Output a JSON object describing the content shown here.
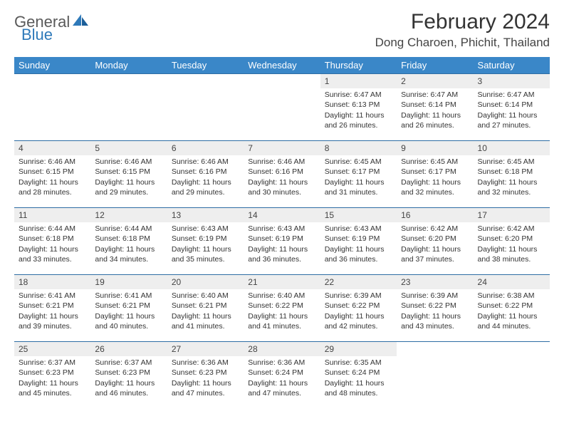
{
  "brand": {
    "part1": "General",
    "part2": "Blue"
  },
  "title": "February 2024",
  "location": "Dong Charoen, Phichit, Thailand",
  "colors": {
    "header_bg": "#3a87c8",
    "header_text": "#ffffff",
    "row_border": "#2e6da4",
    "daynum_bg": "#eeeeee",
    "brand_blue": "#2e79b9"
  },
  "weekdays": [
    "Sunday",
    "Monday",
    "Tuesday",
    "Wednesday",
    "Thursday",
    "Friday",
    "Saturday"
  ],
  "weeks": [
    [
      null,
      null,
      null,
      null,
      {
        "d": "1",
        "sr": "6:47 AM",
        "ss": "6:13 PM",
        "dl": "11 hours and 26 minutes."
      },
      {
        "d": "2",
        "sr": "6:47 AM",
        "ss": "6:14 PM",
        "dl": "11 hours and 26 minutes."
      },
      {
        "d": "3",
        "sr": "6:47 AM",
        "ss": "6:14 PM",
        "dl": "11 hours and 27 minutes."
      }
    ],
    [
      {
        "d": "4",
        "sr": "6:46 AM",
        "ss": "6:15 PM",
        "dl": "11 hours and 28 minutes."
      },
      {
        "d": "5",
        "sr": "6:46 AM",
        "ss": "6:15 PM",
        "dl": "11 hours and 29 minutes."
      },
      {
        "d": "6",
        "sr": "6:46 AM",
        "ss": "6:16 PM",
        "dl": "11 hours and 29 minutes."
      },
      {
        "d": "7",
        "sr": "6:46 AM",
        "ss": "6:16 PM",
        "dl": "11 hours and 30 minutes."
      },
      {
        "d": "8",
        "sr": "6:45 AM",
        "ss": "6:17 PM",
        "dl": "11 hours and 31 minutes."
      },
      {
        "d": "9",
        "sr": "6:45 AM",
        "ss": "6:17 PM",
        "dl": "11 hours and 32 minutes."
      },
      {
        "d": "10",
        "sr": "6:45 AM",
        "ss": "6:18 PM",
        "dl": "11 hours and 32 minutes."
      }
    ],
    [
      {
        "d": "11",
        "sr": "6:44 AM",
        "ss": "6:18 PM",
        "dl": "11 hours and 33 minutes."
      },
      {
        "d": "12",
        "sr": "6:44 AM",
        "ss": "6:18 PM",
        "dl": "11 hours and 34 minutes."
      },
      {
        "d": "13",
        "sr": "6:43 AM",
        "ss": "6:19 PM",
        "dl": "11 hours and 35 minutes."
      },
      {
        "d": "14",
        "sr": "6:43 AM",
        "ss": "6:19 PM",
        "dl": "11 hours and 36 minutes."
      },
      {
        "d": "15",
        "sr": "6:43 AM",
        "ss": "6:19 PM",
        "dl": "11 hours and 36 minutes."
      },
      {
        "d": "16",
        "sr": "6:42 AM",
        "ss": "6:20 PM",
        "dl": "11 hours and 37 minutes."
      },
      {
        "d": "17",
        "sr": "6:42 AM",
        "ss": "6:20 PM",
        "dl": "11 hours and 38 minutes."
      }
    ],
    [
      {
        "d": "18",
        "sr": "6:41 AM",
        "ss": "6:21 PM",
        "dl": "11 hours and 39 minutes."
      },
      {
        "d": "19",
        "sr": "6:41 AM",
        "ss": "6:21 PM",
        "dl": "11 hours and 40 minutes."
      },
      {
        "d": "20",
        "sr": "6:40 AM",
        "ss": "6:21 PM",
        "dl": "11 hours and 41 minutes."
      },
      {
        "d": "21",
        "sr": "6:40 AM",
        "ss": "6:22 PM",
        "dl": "11 hours and 41 minutes."
      },
      {
        "d": "22",
        "sr": "6:39 AM",
        "ss": "6:22 PM",
        "dl": "11 hours and 42 minutes."
      },
      {
        "d": "23",
        "sr": "6:39 AM",
        "ss": "6:22 PM",
        "dl": "11 hours and 43 minutes."
      },
      {
        "d": "24",
        "sr": "6:38 AM",
        "ss": "6:22 PM",
        "dl": "11 hours and 44 minutes."
      }
    ],
    [
      {
        "d": "25",
        "sr": "6:37 AM",
        "ss": "6:23 PM",
        "dl": "11 hours and 45 minutes."
      },
      {
        "d": "26",
        "sr": "6:37 AM",
        "ss": "6:23 PM",
        "dl": "11 hours and 46 minutes."
      },
      {
        "d": "27",
        "sr": "6:36 AM",
        "ss": "6:23 PM",
        "dl": "11 hours and 47 minutes."
      },
      {
        "d": "28",
        "sr": "6:36 AM",
        "ss": "6:24 PM",
        "dl": "11 hours and 47 minutes."
      },
      {
        "d": "29",
        "sr": "6:35 AM",
        "ss": "6:24 PM",
        "dl": "11 hours and 48 minutes."
      },
      null,
      null
    ]
  ],
  "labels": {
    "sunrise": "Sunrise:",
    "sunset": "Sunset:",
    "daylight": "Daylight:"
  }
}
